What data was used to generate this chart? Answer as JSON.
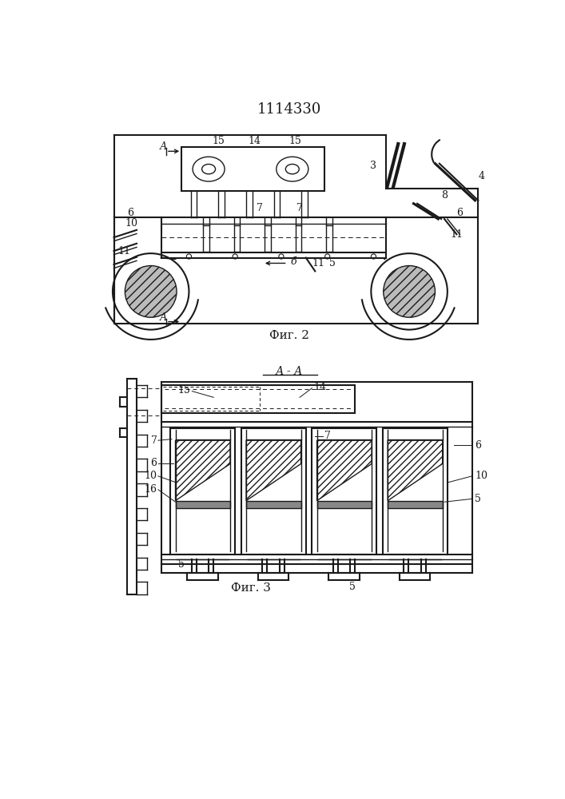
{
  "title": "1114330",
  "fig2_caption": "Фиг. 2",
  "fig3_caption": "Фиг. 3",
  "fig3_title": "А - А",
  "bg_color": "#ffffff",
  "line_color": "#1a1a1a"
}
